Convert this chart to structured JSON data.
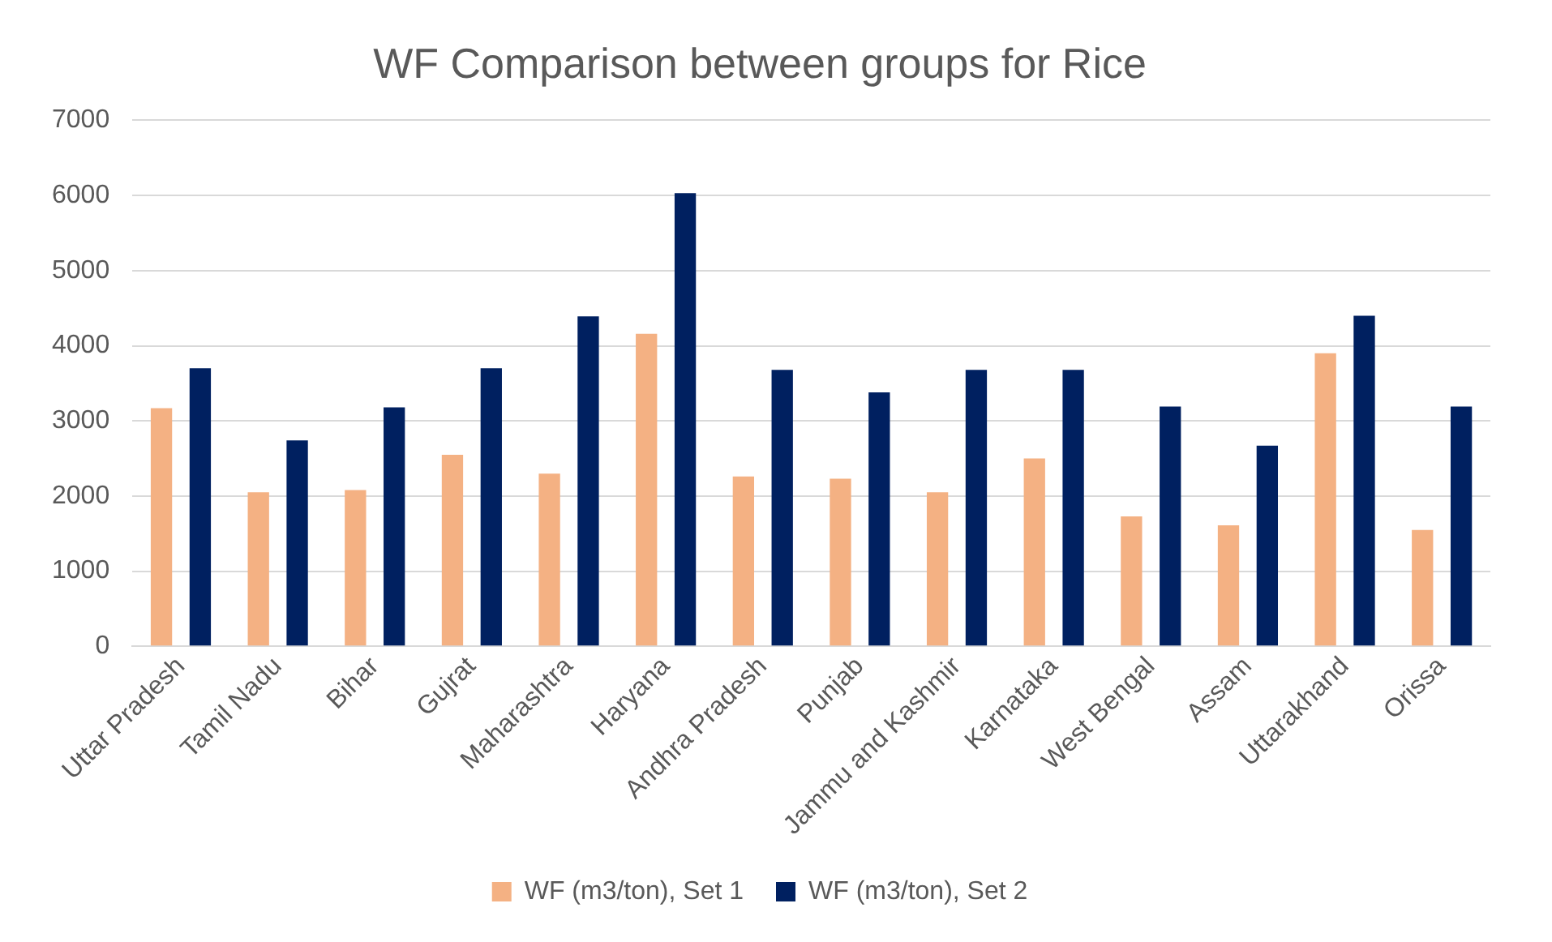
{
  "chart_data": {
    "type": "bar",
    "title": "WF Comparison between groups for Rice",
    "categories": [
      "Uttar Pradesh",
      "Tamil Nadu",
      "Bihar",
      "Gujrat",
      "Maharashtra",
      "Haryana",
      "Andhra Pradesh",
      "Punjab",
      "Jammu and Kashmir",
      "Karnataka",
      "West Bengal",
      "Assam",
      "Uttarakhand",
      "Orissa"
    ],
    "series": [
      {
        "name": "WF (m3/ton), Set 1",
        "color": "#f4b183",
        "values": [
          3170,
          2050,
          2080,
          2550,
          2300,
          4160,
          2260,
          2230,
          2050,
          2500,
          1730,
          1610,
          3900,
          1550
        ]
      },
      {
        "name": "WF (m3/ton), Set 2",
        "color": "#002060",
        "values": [
          3700,
          2740,
          3180,
          3700,
          4390,
          6030,
          3680,
          3380,
          3680,
          3680,
          3190,
          2670,
          4400,
          3190
        ]
      }
    ],
    "ylim": [
      0,
      7000
    ],
    "yticks": [
      0,
      1000,
      2000,
      3000,
      4000,
      5000,
      6000,
      7000
    ],
    "grid": "y",
    "legend": "bottom"
  }
}
